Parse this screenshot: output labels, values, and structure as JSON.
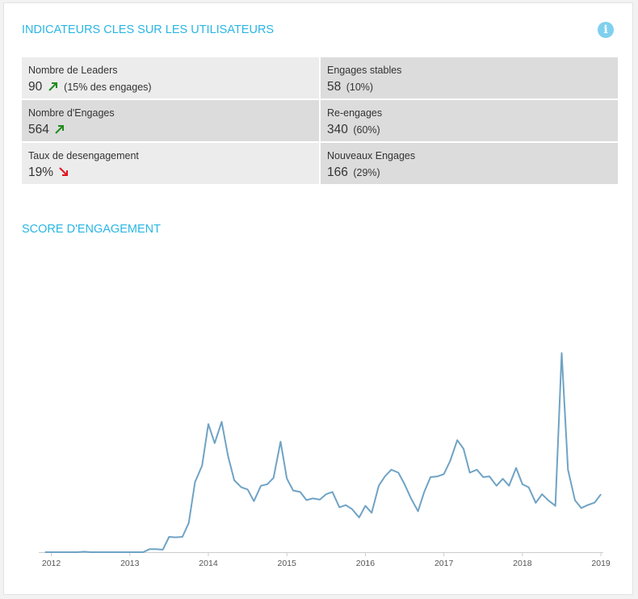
{
  "header": {
    "kpi_title": "INDICATEURS CLES SUR LES UTILISATEURS",
    "score_title": "SCORE D'ENGAGEMENT",
    "info_icon": "info-icon"
  },
  "kpis": [
    {
      "label": "Nombre de Leaders",
      "value": "90",
      "pct": "(15% des engages)",
      "trend": "up"
    },
    {
      "label": "Engages stables",
      "value": "58",
      "pct": "(10%)",
      "trend": "none"
    },
    {
      "label": "Nombre d'Engages",
      "value": "564",
      "pct": "",
      "trend": "up"
    },
    {
      "label": "Re-engages",
      "value": "340",
      "pct": "(60%)",
      "trend": "none"
    },
    {
      "label": "Taux de desengagement",
      "value": "19%",
      "pct": "",
      "trend": "down"
    },
    {
      "label": "Nouveaux Engages",
      "value": "166",
      "pct": "(29%)",
      "trend": "none"
    }
  ],
  "colors": {
    "accent": "#29b6e4",
    "line": "#6fa3c5",
    "trend_up": "#1e8c1e",
    "trend_down": "#e0141e"
  },
  "chart_data": {
    "type": "line",
    "title": "SCORE D'ENGAGEMENT",
    "xlabel": "",
    "ylabel": "",
    "xlim": [
      2011.84,
      2019.03
    ],
    "ylim": [
      0,
      100
    ],
    "x_ticks": [
      "2012",
      "2013",
      "2014",
      "2015",
      "2016",
      "2017",
      "2018",
      "2019"
    ],
    "grid": false,
    "series": [
      {
        "name": "",
        "x": [
          2011.92,
          2012.0,
          2012.08,
          2012.17,
          2012.25,
          2012.33,
          2012.42,
          2012.5,
          2012.58,
          2012.67,
          2012.75,
          2012.83,
          2012.92,
          2013.0,
          2013.08,
          2013.17,
          2013.25,
          2013.33,
          2013.42,
          2013.5,
          2013.58,
          2013.67,
          2013.75,
          2013.83,
          2013.92,
          2014.0,
          2014.08,
          2014.17,
          2014.25,
          2014.33,
          2014.42,
          2014.5,
          2014.58,
          2014.67,
          2014.75,
          2014.83,
          2014.92,
          2015.0,
          2015.08,
          2015.17,
          2015.25,
          2015.33,
          2015.42,
          2015.5,
          2015.58,
          2015.67,
          2015.75,
          2015.83,
          2015.92,
          2016.0,
          2016.08,
          2016.17,
          2016.25,
          2016.33,
          2016.42,
          2016.5,
          2016.58,
          2016.67,
          2016.75,
          2016.83,
          2016.92,
          2017.0,
          2017.08,
          2017.17,
          2017.25,
          2017.33,
          2017.42,
          2017.5,
          2017.58,
          2017.67,
          2017.75,
          2017.83,
          2017.92,
          2018.0,
          2018.08,
          2018.17,
          2018.25,
          2018.33,
          2018.42,
          2018.5,
          2018.58,
          2018.67,
          2018.75,
          2018.83,
          2018.92,
          2019.0
        ],
        "values": [
          0,
          0,
          0,
          0,
          0,
          0,
          0.2,
          0,
          0,
          0,
          0,
          0,
          0,
          0,
          0,
          0,
          1.2,
          1.2,
          1.0,
          6.2,
          6.0,
          6.2,
          11.8,
          28.3,
          34.9,
          51.7,
          44.0,
          52.6,
          38.9,
          29.0,
          26.2,
          25.3,
          20.6,
          26.8,
          27.4,
          30.0,
          44.6,
          29.7,
          24.9,
          24.3,
          21.0,
          21.7,
          21.2,
          23.4,
          24.3,
          18.1,
          19.0,
          17.4,
          14.0,
          18.7,
          15.9,
          26.8,
          30.6,
          33.3,
          32.1,
          27.4,
          21.8,
          16.5,
          24.3,
          30.3,
          30.6,
          31.5,
          36.8,
          45.2,
          41.7,
          32.1,
          33.3,
          30.3,
          30.6,
          26.8,
          29.6,
          26.8,
          34.0,
          27.4,
          26.2,
          19.9,
          23.4,
          20.9,
          18.7,
          80.4,
          33.3,
          20.9,
          17.8,
          19.0,
          20.0,
          23.4
        ]
      }
    ]
  }
}
